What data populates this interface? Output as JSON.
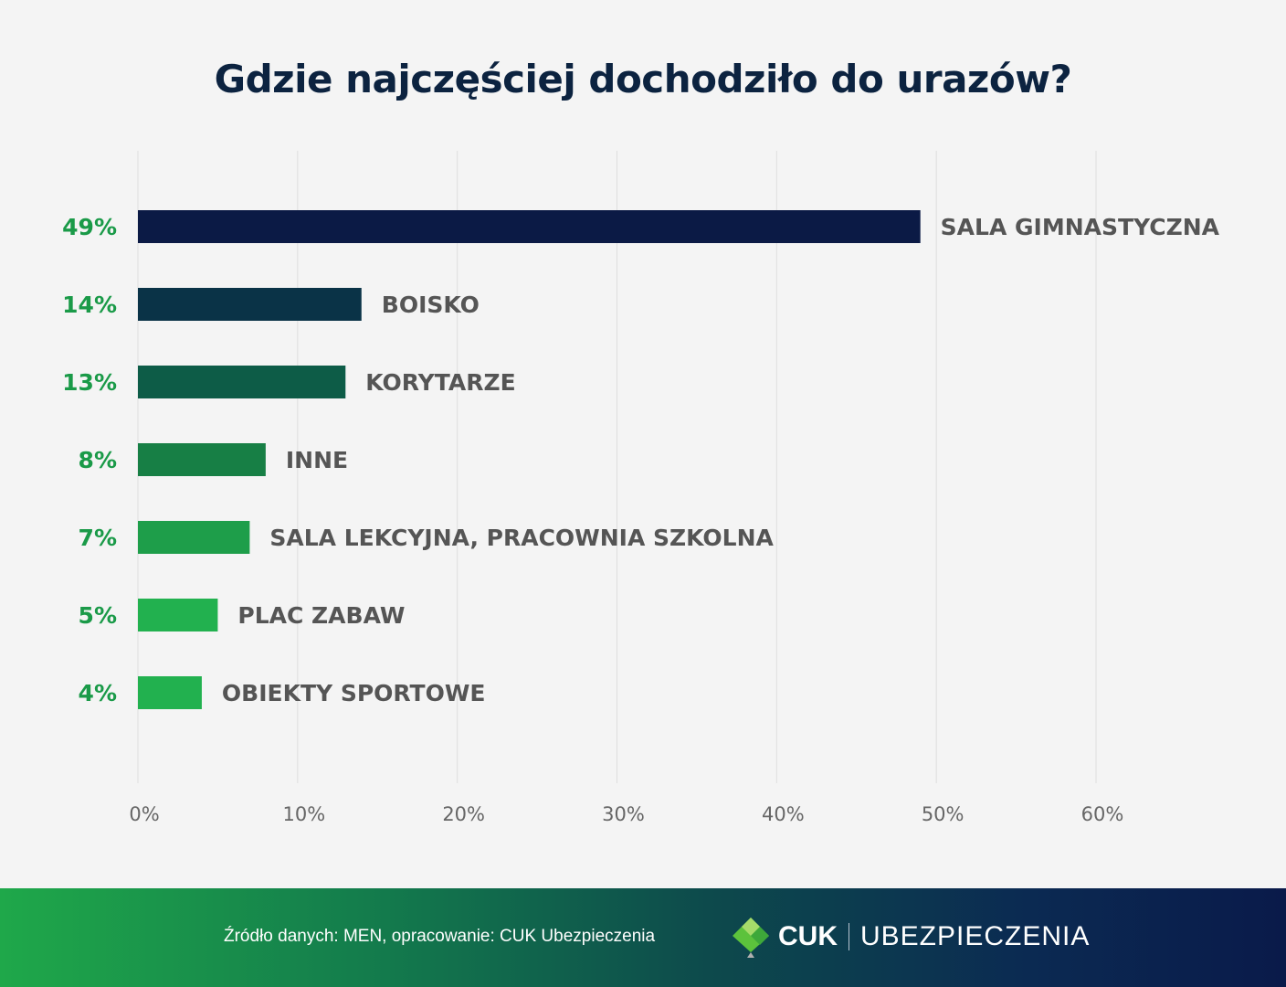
{
  "chart_data": {
    "type": "bar",
    "orientation": "horizontal",
    "title": "Gdzie najczęściej dochodziło do urazów?",
    "categories": [
      "SALA GIMNASTYCZNA",
      "BOISKO",
      "KORYTARZE",
      "INNE",
      "SALA LEKCYJNA, PRACOWNIA SZKOLNA",
      "PLAC ZABAW",
      "OBIEKTY SPORTOWE"
    ],
    "values": [
      49,
      14,
      13,
      8,
      7,
      5,
      4
    ],
    "value_labels": [
      "49%",
      "14%",
      "13%",
      "8%",
      "7%",
      "5%",
      "4%"
    ],
    "bar_colors": [
      "#0b1a45",
      "#0a3347",
      "#0d5c47",
      "#177f45",
      "#1e9e4a",
      "#22b14f",
      "#22b14f"
    ],
    "xlim": [
      0,
      60
    ],
    "xticks": [
      0,
      10,
      20,
      30,
      40,
      50,
      60
    ],
    "xtick_labels": [
      "0%",
      "10%",
      "20%",
      "30%",
      "40%",
      "50%",
      "60%"
    ],
    "grid": "vertical",
    "value_label_color": "#1a9a48",
    "category_label_color": "#555555"
  },
  "footer": {
    "source": "Źródło danych: MEN, opracowanie: CUK Ubezpieczenia",
    "logo_text": "CUK",
    "logo_sub": "UBEZPIECZENIA"
  }
}
